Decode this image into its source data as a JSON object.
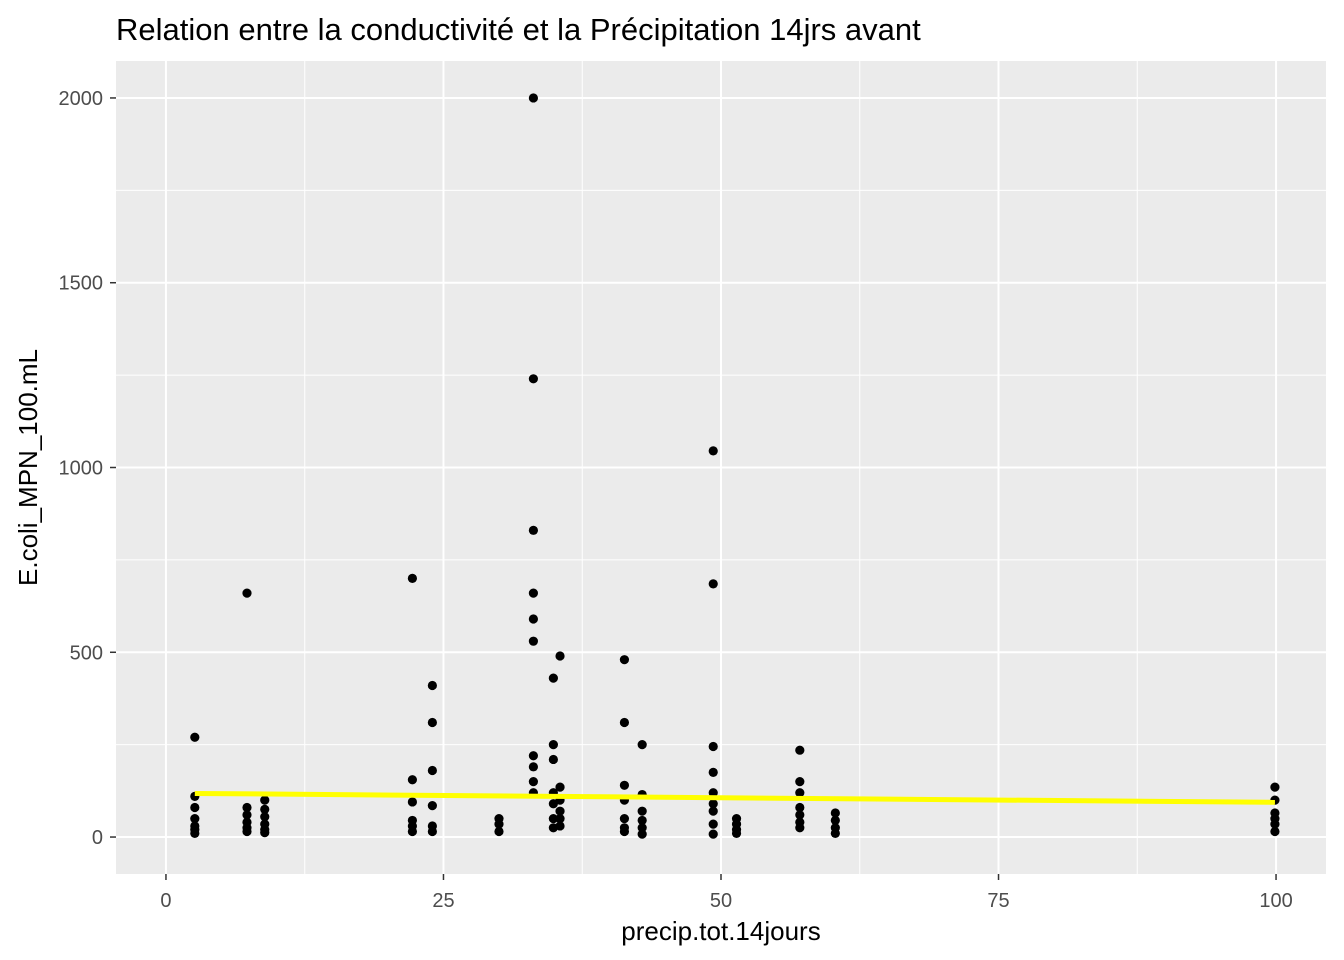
{
  "chart_data": {
    "type": "scatter",
    "title": "Relation entre la conductivité et la Précipitation 14jrs avant",
    "xlabel": "precip.tot.14jours",
    "ylabel": "E.coli_MPN_100.mL",
    "xlim": [
      -4.5,
      104.5
    ],
    "ylim": [
      -100,
      2100
    ],
    "x_ticks": [
      0,
      25,
      50,
      75,
      100
    ],
    "x_tick_labels": [
      "0",
      "25",
      "50",
      "75",
      "100"
    ],
    "y_ticks": [
      0,
      500,
      1000,
      1500,
      2000
    ],
    "y_tick_labels": [
      "0",
      "500",
      "1000",
      "1500",
      "2000"
    ],
    "grid": true,
    "legend": "none",
    "colors": {
      "panel_background": "#ebebeb",
      "grid": "#ffffff",
      "points": "#000000",
      "trend_line": "#ffff00"
    },
    "series": [
      {
        "values": [
          [
            2.6,
            270
          ],
          [
            2.6,
            110
          ],
          [
            2.6,
            80
          ],
          [
            2.6,
            50
          ],
          [
            2.6,
            30
          ],
          [
            2.6,
            20
          ],
          [
            2.6,
            10
          ],
          [
            7.3,
            660
          ],
          [
            7.3,
            80
          ],
          [
            7.3,
            60
          ],
          [
            7.3,
            40
          ],
          [
            7.3,
            25
          ],
          [
            7.3,
            15
          ],
          [
            8.9,
            100
          ],
          [
            8.9,
            75
          ],
          [
            8.9,
            55
          ],
          [
            8.9,
            35
          ],
          [
            8.9,
            20
          ],
          [
            8.9,
            12
          ],
          [
            22.2,
            700
          ],
          [
            22.2,
            155
          ],
          [
            22.2,
            95
          ],
          [
            22.2,
            45
          ],
          [
            22.2,
            30
          ],
          [
            22.2,
            15
          ],
          [
            24.0,
            410
          ],
          [
            24.0,
            310
          ],
          [
            24.0,
            180
          ],
          [
            24.0,
            85
          ],
          [
            24.0,
            30
          ],
          [
            24.0,
            15
          ],
          [
            30.0,
            50
          ],
          [
            30.0,
            35
          ],
          [
            30.0,
            15
          ],
          [
            33.1,
            2000
          ],
          [
            33.1,
            1240
          ],
          [
            33.1,
            830
          ],
          [
            33.1,
            660
          ],
          [
            33.1,
            590
          ],
          [
            33.1,
            530
          ],
          [
            33.1,
            220
          ],
          [
            33.1,
            190
          ],
          [
            33.1,
            150
          ],
          [
            33.1,
            120
          ],
          [
            34.9,
            430
          ],
          [
            34.9,
            250
          ],
          [
            34.9,
            210
          ],
          [
            34.9,
            120
          ],
          [
            34.9,
            90
          ],
          [
            34.9,
            50
          ],
          [
            34.9,
            25
          ],
          [
            35.5,
            490
          ],
          [
            35.5,
            135
          ],
          [
            35.5,
            100
          ],
          [
            35.5,
            70
          ],
          [
            35.5,
            50
          ],
          [
            35.5,
            30
          ],
          [
            41.3,
            480
          ],
          [
            41.3,
            310
          ],
          [
            41.3,
            140
          ],
          [
            41.3,
            100
          ],
          [
            41.3,
            50
          ],
          [
            41.3,
            25
          ],
          [
            41.3,
            15
          ],
          [
            42.9,
            250
          ],
          [
            42.9,
            115
          ],
          [
            42.9,
            70
          ],
          [
            42.9,
            45
          ],
          [
            42.9,
            25
          ],
          [
            42.9,
            8
          ],
          [
            49.3,
            1045
          ],
          [
            49.3,
            685
          ],
          [
            49.3,
            245
          ],
          [
            49.3,
            175
          ],
          [
            49.3,
            120
          ],
          [
            49.3,
            90
          ],
          [
            49.3,
            70
          ],
          [
            49.3,
            35
          ],
          [
            49.3,
            8
          ],
          [
            51.4,
            50
          ],
          [
            51.4,
            35
          ],
          [
            51.4,
            20
          ],
          [
            51.4,
            10
          ],
          [
            57.1,
            235
          ],
          [
            57.1,
            150
          ],
          [
            57.1,
            120
          ],
          [
            57.1,
            80
          ],
          [
            57.1,
            60
          ],
          [
            57.1,
            40
          ],
          [
            57.1,
            25
          ],
          [
            60.3,
            65
          ],
          [
            60.3,
            45
          ],
          [
            60.3,
            25
          ],
          [
            60.3,
            10
          ],
          [
            99.9,
            135
          ],
          [
            99.9,
            100
          ],
          [
            99.9,
            65
          ],
          [
            99.9,
            50
          ],
          [
            99.9,
            35
          ],
          [
            99.9,
            15
          ]
        ]
      }
    ],
    "trend": {
      "x": [
        2.6,
        99.9
      ],
      "y": [
        118,
        94
      ]
    }
  }
}
